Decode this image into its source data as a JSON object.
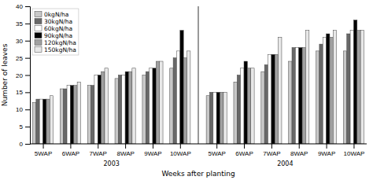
{
  "chart_data": {
    "type": "bar",
    "xlabel": "Weeks after planting",
    "ylabel": "Number of leaves",
    "annotations": [
      "2003",
      "2004"
    ],
    "categories": [
      "5WAP",
      "6WAP",
      "7WAP",
      "8WAP",
      "9WAP",
      "10WAP",
      "5WAP",
      "6WAP",
      "7WAP",
      "8WAP",
      "9WAP",
      "10WAP"
    ],
    "series": [
      {
        "name": "0kgN/ha",
        "color": "#c8c8c8",
        "values": [
          12,
          16,
          17,
          19,
          20,
          22,
          14,
          18,
          21,
          24,
          27,
          27
        ]
      },
      {
        "name": "30kgN/ha",
        "color": "#686868",
        "values": [
          13,
          16,
          17,
          20,
          21,
          25,
          15,
          20,
          23,
          28,
          29,
          32
        ]
      },
      {
        "name": "60kgN/ha",
        "color": "#ffffff",
        "values": [
          13,
          17,
          20,
          20,
          22,
          27,
          15,
          22,
          26,
          28,
          31,
          33
        ]
      },
      {
        "name": "90kgN/ha",
        "color": "#000000",
        "values": [
          13,
          17,
          20,
          21,
          22,
          33,
          15,
          24,
          26,
          28,
          32,
          36
        ]
      },
      {
        "name": "120kgN/ha",
        "color": "#a0a0a0",
        "values": [
          13,
          17,
          21,
          21,
          24,
          25,
          15,
          22,
          26,
          28,
          31,
          33
        ]
      },
      {
        "name": "150kgN/ha",
        "color": "#e8e8e8",
        "values": [
          14,
          18,
          22,
          22,
          24,
          27,
          15,
          22,
          31,
          33,
          33,
          33
        ]
      }
    ],
    "ylim": [
      0,
      40
    ],
    "yticks": [
      0,
      5,
      10,
      15,
      20,
      25,
      30,
      35,
      40
    ],
    "grid": false,
    "legend": "upper left"
  }
}
